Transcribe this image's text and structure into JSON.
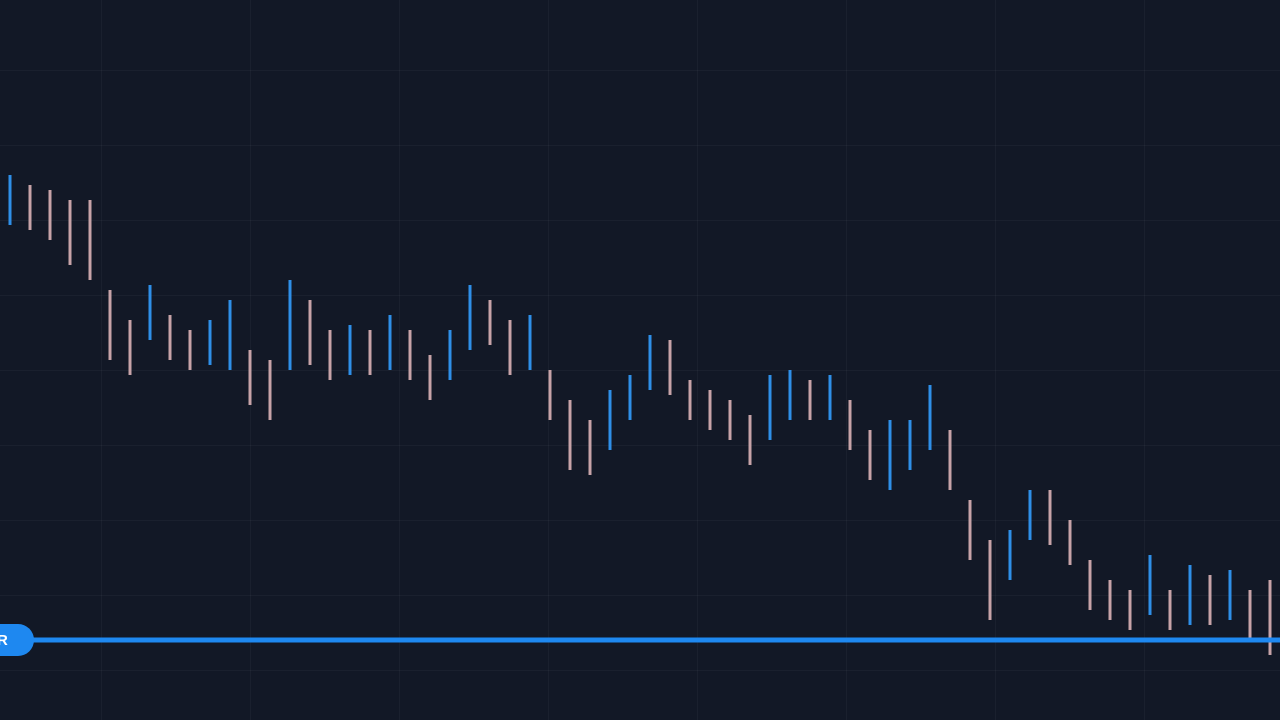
{
  "chart_data": {
    "type": "candlestick",
    "high": [
      54.5,
      53.5,
      53,
      52,
      52,
      43,
      40,
      43.5,
      40.5,
      39,
      40,
      42,
      37,
      36,
      44,
      42,
      39,
      39.5,
      39,
      40.5,
      39,
      36.5,
      39,
      43.5,
      42,
      40,
      40.5,
      35,
      32,
      30,
      33,
      34.5,
      38.5,
      38,
      34,
      33,
      32,
      30.5,
      34.5,
      35,
      34,
      34.5,
      32,
      29,
      30,
      30,
      33.5,
      29,
      22,
      18,
      19,
      23,
      23,
      20,
      16,
      14,
      13,
      16.5,
      13,
      15.5,
      14.5,
      15,
      13,
      14
    ],
    "low": [
      49.5,
      49,
      48,
      45.5,
      44,
      36,
      34.5,
      38,
      36,
      35,
      35.5,
      35,
      31.5,
      30,
      35,
      35.5,
      34,
      34.5,
      34.5,
      35,
      34,
      32,
      34,
      37,
      37.5,
      34.5,
      35,
      30,
      25,
      24.5,
      27,
      30,
      33,
      32.5,
      30,
      29,
      28,
      25.5,
      28,
      30,
      30,
      30,
      27,
      24,
      23,
      25,
      27,
      23,
      16,
      10,
      14,
      18,
      17.5,
      15.5,
      11,
      10,
      9,
      10.5,
      9,
      9.5,
      9.5,
      10,
      8,
      6.5
    ],
    "ylim": [
      0,
      72
    ],
    "up_color": "#2f8fe8",
    "down_color": "#c7a3a8",
    "level": 8,
    "level_color": "#1e88f0",
    "level_label": "R"
  }
}
